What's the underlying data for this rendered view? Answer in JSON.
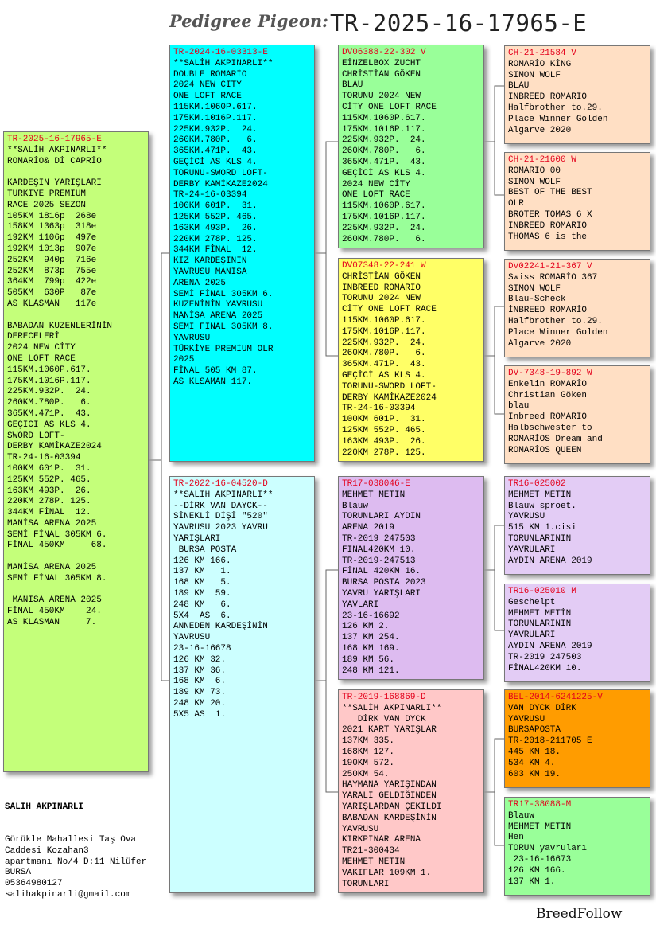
{
  "header": {
    "label": "Pedigree Pigeon:",
    "ring": "TR-2025-16-17965-E"
  },
  "subject": {
    "ring": "TR-2025-16-17965-E",
    "text": "**SALİH AKPINARLI**\nROMARİO& Dİ CAPRİO\n\nKARDEŞİN YARIŞLARI\nTÜRKİYE PREMİUM\nRACE 2025 SEZON\n105KM 1816p  268e\n158KM 1363p  318e\n192KM 1106p  497e\n192KM 1013p  907e\n252KM  940p  716e\n252KM  873p  755e\n364KM  799p  422e\n505KM  630P   87e\nAS KLASMAN   117e\n\nBABADAN KUZENLERİNİN\nDERECELERİ\n2024 NEW CİTY\nONE LOFT RACE\n115KM.1060P.617.\n175KM.1016P.117.\n225KM.932P.  24.\n260KM.780P.   6.\n365KM.471P.  43.\nGEÇİCİ AS KLS 4.\nSWORD LOFT-\nDERBY KAMİKAZE2024\nTR-24-16-03394\n100KM 601P.  31.\n125KM 552P. 465.\n163KM 493P.  26.\n220KM 278P. 125.\n344KM FİNAL  12.\nMANİSA ARENA 2025\nSEMİ FİNAL 305KM 6.\nFİNAL 450KM     68.\n\nMANİSA ARENA 2025\nSEMİ FİNAL 305KM 8.\n\n MANİSA ARENA 2025\nFİNAL 450KM    24.\nAS KLASMAN     7."
  },
  "sire": {
    "ring": "TR-2024-16-03313-E",
    "text": "**SALİH AKPINARLI**\nDOUBLE ROMARİO\n2024 NEW CİTY\nONE LOFT RACE\n115KM.1060P.617.\n175KM.1016P.117.\n225KM.932P.  24.\n260KM.780P.   6.\n365KM.471P.  43.\nGEÇİCİ AS KLS 4.\nTORUNU-SWORD LOFT-\nDERBY KAMİKAZE2024\nTR-24-16-03394\n100KM 601P.  31.\n125KM 552P. 465.\n163KM 493P.  26.\n220KM 278P. 125.\n344KM FİNAL  12.\nKIZ KARDEŞİNİN\nYAVRUSU MANİSA\nARENA 2025\nSEMİ FİNAL 305KM 6.\nKUZENİNİN YAVRUSU\nMANİSA ARENA 2025\nSEMİ FİNAL 305KM 8.\nYAVRUSU\nTÜRKİYE PREMİUM OLR\n2025\nFİNAL 505 KM 87.\nAS KLSAMAN 117."
  },
  "dam": {
    "ring": "TR-2022-16-04520-D",
    "text": "**SALİH AKPINARLI**\n--DİRK VAN DAYCK--\nSİNEKLİ DİŞİ \"520\"\nYAVRUSU 2023 YAVRU\nYARIŞLARI\n BURSA POSTA\n126 KM 166.\n137 KM   1.\n168 KM   5.\n189 KM  59.\n248 KM   6.\n5X4  AS  6.\nANNEDEN KARDEŞİNİN\nYAVRUSU\n23-16-16678\n126 KM 32.\n137 KM 36.\n168 KM  6.\n189 KM 73.\n248 KM 20.\n5X5 AS  1."
  },
  "sire_sire": {
    "ring": "DV06388-22-302 V",
    "text": "EİNZELBOX ZUCHT\nCHRİSTİAN GÖKEN\nBLAU\nTORUNU 2024 NEW\nCİTY ONE LOFT RACE\n115KM.1060P.617.\n175KM.1016P.117.\n225KM.932P.  24.\n260KM.780P.   6.\n365KM.471P.  43.\nGEÇİCİ AS KLS 4.\n2024 NEW CİTY\nONE LOFT RACE\n115KM.1060P.617.\n175KM.1016P.117.\n225KM.932P.  24.\n260KM.780P.   6."
  },
  "sire_dam": {
    "ring": "DV07348-22-241 W",
    "text": "CHRİSTİAN GÖKEN\nİNBREED ROMARİO\nTORUNU 2024 NEW\nCİTY ONE LOFT RACE\n115KM.1060P.617.\n175KM.1016P.117.\n225KM.932P.  24.\n260KM.780P.   6.\n365KM.471P.  43.\nGEÇİCİ AS KLS 4.\nTORUNU-SWORD LOFT-\nDERBY KAMİKAZE2024\nTR-24-16-03394\n100KM 601P.  31.\n125KM 552P. 465.\n163KM 493P.  26.\n220KM 278P. 125."
  },
  "dam_sire": {
    "ring": "TR17-038046-E",
    "text": "MEHMET METİN\nBlauw\nTORUNLARI AYDIN\nARENA 2019\nTR-2019 247503\nFİNAL420KM 10.\nTR-2019-247513\nFİNAL 420KM 16.\nBURSA POSTA 2023\nYAVRU YARIŞLARI\nYAVLARI\n23-16-16692\n126 KM 2.\n137 KM 254.\n168 KM 169.\n189 KM 56.\n248 KM 121."
  },
  "dam_dam": {
    "ring": "TR-2019-168869-D",
    "text": "**SALİH AKPINARLI**\n   DİRK VAN DYCK\n2021 KART YARIŞLAR\n137KM 335.\n168KM 127.\n190KM 572.\n250KM 54.\nHAYMANA YARIŞINDAN\nYARALI GELDİĞİNDEN\nYARIŞLARDAN ÇEKİLDİ\nBABADAN KARDEŞİNİN\nYAVRUSU\nKIRKPINAR ARENA\nTR21-300434\nMEHMET METİN\nVAKIFLAR 109KM 1.\nTORUNLARI"
  },
  "gg": [
    {
      "ring": "CH-21-21584 V",
      "text": "ROMARİO KİNG\nSIMON WOLF\nBLAU\nİNBREED ROMARİO\nHalfbrother to.29.\nPlace Winner Golden\nAlgarve 2020"
    },
    {
      "ring": "CH-21-21600 W",
      "text": "ROMARİO 00\nSIMON WOLF\nBEST OF THE BEST\nOLR\nBROTER TOMAS 6 X\nİNBREED ROMARİO\nTHOMAS 6 is the"
    },
    {
      "ring": "DV02241-21-367 V",
      "text": "Swiss ROMARİO 367\nSIMON WOLF\nBlau-Scheck\nİNBREED ROMARİO\nHalfbrother to.29.\nPlace Winner Golden\nAlgarve 2020"
    },
    {
      "ring": "DV-7348-19-892 W",
      "text": "Enkelin ROMARİO\nChristian Göken\nblau\nİnbreed ROMARİO\nHalbschwester to\nROMARİOS Dream and\nROMARİOS QUEEN"
    },
    {
      "ring": "TR16-025002",
      "text": "MEHMET METİN\nBlauw sproet.\nYAVRUSU\n515 KM 1.cisi\nTORUNLARININ\nYAVRULARI\nAYDIN ARENA 2019"
    },
    {
      "ring": "TR16-025010 M",
      "text": "Geschelpt\nMEHMET METİN\nTORUNLARININ\nYAVRULARI\nAYDIN ARENA 2019\nTR-2019 247503\nFİNAL420KM 10."
    },
    {
      "ring": "BEL-2014-6241225-V",
      "text": "VAN DYCK DİRK\nYAVRUSU\nBURSAPOSTA\nTR-2018-211705 E\n445 KM 18.\n534 KM 4.\n603 KM 19."
    },
    {
      "ring": "TR17-38088-M",
      "text": "Blauw\nMEHMET METİN\nHen\nTORUN yavruları\n 23-16-16673\n126 KM 166.\n137 KM 1."
    }
  ],
  "owner": {
    "name": "SALİH AKPINARLI",
    "address": "Görükle Mahallesi Taş Ova\nCaddesi Kozahan3\napartmanı No/4 D:11 Nilüfer\nBURSA\n05364980127\nsalihakpinarli@gmail.com"
  },
  "brand": "BreedFollow"
}
